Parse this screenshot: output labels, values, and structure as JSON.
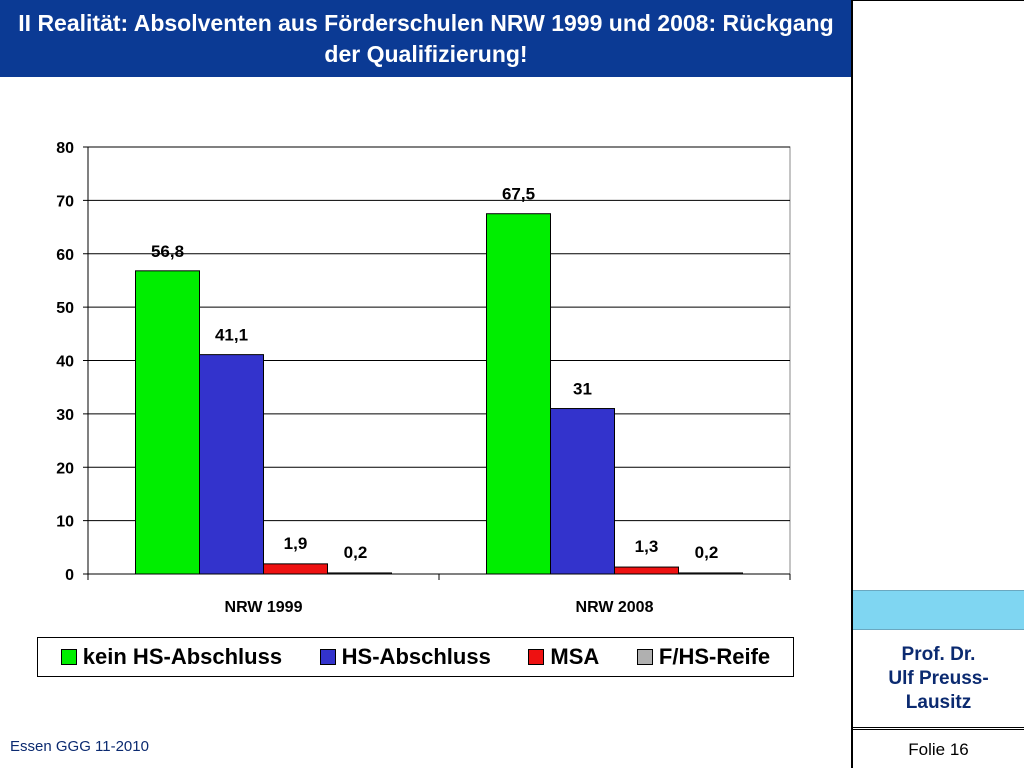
{
  "slide": {
    "title": "II Realität: Absolventen aus Förderschulen NRW 1999 und 2008: Rückgang der Qualifizierung!",
    "author_line1": "Prof. Dr.",
    "author_line2": "Ulf Preuss-",
    "author_line3": "Lausitz",
    "slide_number": "Folie 16",
    "footer": "Essen GGG 11-2010"
  },
  "colors": {
    "title_bg": "#0b3a94",
    "accent_panel": "#7fd6f2"
  },
  "chart_data": {
    "type": "bar",
    "categories": [
      "NRW 1999",
      "NRW 2008"
    ],
    "series": [
      {
        "name": "kein HS-Abschluss",
        "color": "#00ee00",
        "values": [
          56.8,
          67.5
        ],
        "labels": [
          "56,8",
          "67,5"
        ]
      },
      {
        "name": "HS-Abschluss",
        "color": "#3333cc",
        "values": [
          41.1,
          31
        ],
        "labels": [
          "41,1",
          "31"
        ]
      },
      {
        "name": "MSA",
        "color": "#ee1111",
        "values": [
          1.9,
          1.3
        ],
        "labels": [
          "1,9",
          "1,3"
        ]
      },
      {
        "name": "F/HS-Reife",
        "color": "#b0b0b0",
        "values": [
          0.2,
          0.2
        ],
        "labels": [
          "0,2",
          "0,2"
        ]
      }
    ],
    "ylim": [
      0,
      80
    ],
    "yticks": [
      "0",
      "10",
      "20",
      "30",
      "40",
      "50",
      "60",
      "70",
      "80"
    ],
    "grid": true,
    "legend": "bottom"
  }
}
